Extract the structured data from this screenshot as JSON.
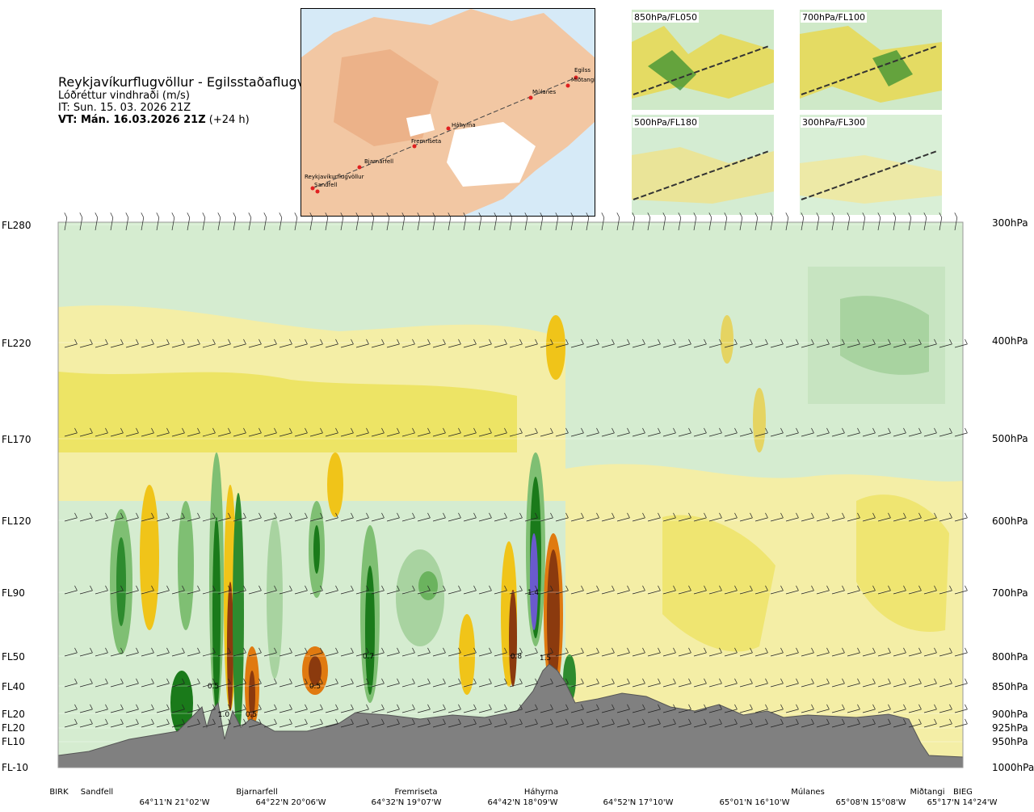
{
  "header": {
    "title": "Reykjavíkurflugvöllur - Egilsstaðaflugvöllur",
    "subtitle": "Lóðréttur vindhraði (m/s)",
    "it": "IT: Sun. 15. 03. 2026 21Z",
    "vt": "VT: Mán. 16.03.2026 21Z",
    "vt_lead": "(+24 h)"
  },
  "map": {
    "route_labels": [
      "Reykjavíkurflugvöllur",
      "Sandfell",
      "Bjarnarfell",
      "Fremriseta",
      "Háhyrna",
      "Múlanes",
      "Miðtangi",
      "Egilss"
    ]
  },
  "mini_maps": [
    {
      "label": "850hPa/FL050"
    },
    {
      "label": "700hPa/FL100"
    },
    {
      "label": "500hPa/FL180"
    },
    {
      "label": "300hPa/FL300"
    }
  ],
  "chart_data": {
    "type": "heatmap",
    "title": "Lóðréttur vindhraði (m/s)",
    "flight_levels": [
      "FL280",
      "FL220",
      "FL170",
      "FL120",
      "FL90",
      "FL50",
      "FL40",
      "FL20",
      "FL20",
      "FL10",
      "FL-10"
    ],
    "pressure_levels_hPa": [
      300,
      400,
      500,
      600,
      700,
      800,
      850,
      900,
      925,
      950,
      1000
    ],
    "stations": [
      "BIRK",
      "Sandfell",
      "Bjarnarfell",
      "Fremriseta",
      "Háhyrna",
      "Múlanes",
      "Miðtangi",
      "BIEG"
    ],
    "coordinates": [
      "64°11'N 21°02'W",
      "64°22'N 20°06'W",
      "64°32'N 19°07'W",
      "64°42'N 18°09'W",
      "64°52'N 17°10'W",
      "65°01'N 16°10'W",
      "65°08'N 15°08'W",
      "65°17'N 14°24'W"
    ],
    "contour_labels": [
      "0.5",
      "1.0",
      "0.5",
      "0.5",
      "0.7",
      "0.8",
      "1.4",
      "1.5"
    ],
    "colors": {
      "ground": "#808080",
      "strong_up": "#1a8a1a",
      "strong_down": "#8b3a0e",
      "max_up": "#6a5acd",
      "weak_down": "#f3ee9a"
    }
  }
}
